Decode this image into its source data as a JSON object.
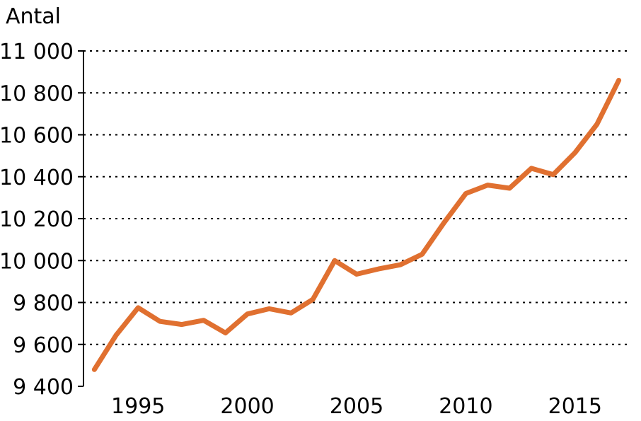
{
  "chart_data": {
    "type": "line",
    "ylabel": "Antal",
    "xlabel": "",
    "title": "",
    "ylim": [
      9400,
      11000
    ],
    "xlim": [
      1992.5,
      2017.5
    ],
    "yticks": [
      "9 400",
      "9 600",
      "9 800",
      "10 000",
      "10 200",
      "10 400",
      "10 600",
      "10 800",
      "11 000"
    ],
    "ytick_values": [
      9400,
      9600,
      9800,
      10000,
      10200,
      10400,
      10600,
      10800,
      11000
    ],
    "xticks": [
      "1995",
      "2000",
      "2005",
      "2010",
      "2015"
    ],
    "xtick_values": [
      1995,
      2000,
      2005,
      2010,
      2015
    ],
    "grid": "horizontal dotted",
    "line_color": "#E07030",
    "series": [
      {
        "x": [
          1993,
          1994,
          1995,
          1996,
          1997,
          1998,
          1999,
          2000,
          2001,
          2002,
          2003,
          2004,
          2005,
          2006,
          2007,
          2008,
          2009,
          2010,
          2011,
          2012,
          2013,
          2014,
          2015,
          2016,
          2017
        ],
        "values": [
          9480,
          9645,
          9775,
          9710,
          9695,
          9715,
          9655,
          9745,
          9770,
          9750,
          9815,
          10000,
          9935,
          9960,
          9980,
          10030,
          10180,
          10320,
          10360,
          10345,
          10440,
          10410,
          10515,
          10650,
          10860
        ]
      }
    ]
  }
}
